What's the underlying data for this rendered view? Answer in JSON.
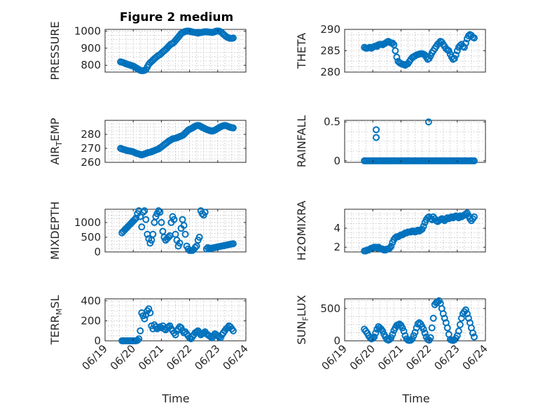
{
  "figure": {
    "title": "Figure 2 medium",
    "marker_color": "#0072BD",
    "xlabel": "Time",
    "x_tick_labels": [
      "06/19",
      "06/20",
      "06/21",
      "06/22",
      "06/23",
      "06/24"
    ]
  },
  "chart_data": [
    {
      "type": "scatter",
      "ylabel": "PRESSURE",
      "ylim": [
        760,
        1010
      ],
      "yticks": [
        800,
        900,
        1000
      ],
      "xlim": [
        0,
        5
      ],
      "grid": true,
      "x": [
        0.55,
        0.6,
        0.65,
        0.7,
        0.75,
        0.8,
        0.85,
        0.9,
        0.95,
        1.0,
        1.05,
        1.1,
        1.15,
        1.2,
        1.25,
        1.3,
        1.35,
        1.4,
        1.45,
        1.5,
        1.55,
        1.6,
        1.65,
        1.7,
        1.75,
        1.8,
        1.85,
        1.9,
        1.95,
        2.0,
        2.05,
        2.1,
        2.15,
        2.2,
        2.25,
        2.3,
        2.35,
        2.4,
        2.45,
        2.5,
        2.55,
        2.6,
        2.65,
        2.7,
        2.75,
        2.8,
        2.85,
        2.9,
        2.95,
        3.0,
        3.05,
        3.1,
        3.15,
        3.2,
        3.25,
        3.3,
        3.35,
        3.4,
        3.45,
        3.5,
        3.55,
        3.6,
        3.65,
        3.7,
        3.75,
        3.8,
        3.85,
        3.9,
        3.95,
        4.0,
        4.05,
        4.1,
        4.15,
        4.2,
        4.25,
        4.3,
        4.35,
        4.4,
        4.45,
        4.5,
        4.55
      ],
      "y": [
        820,
        818,
        815,
        812,
        808,
        805,
        803,
        800,
        798,
        795,
        790,
        785,
        780,
        775,
        770,
        768,
        768,
        770,
        775,
        790,
        805,
        815,
        822,
        830,
        838,
        845,
        852,
        858,
        862,
        870,
        878,
        885,
        892,
        900,
        910,
        918,
        925,
        928,
        935,
        945,
        955,
        965,
        975,
        985,
        990,
        995,
        998,
        1000,
        1000,
        999,
        997,
        995,
        993,
        992,
        990,
        988,
        990,
        992,
        993,
        995,
        996,
        996,
        995,
        994,
        993,
        992,
        994,
        997,
        1000,
        1001,
        1000,
        996,
        990,
        982,
        975,
        968,
        963,
        960,
        958,
        958,
        960
      ]
    },
    {
      "type": "scatter",
      "ylabel": "THETA",
      "ylim": [
        280,
        290
      ],
      "yticks": [
        280,
        285,
        290
      ],
      "xlim": [
        0,
        5
      ],
      "grid": true,
      "x": [
        0.7,
        0.75,
        0.8,
        0.85,
        0.9,
        0.95,
        1.0,
        1.05,
        1.1,
        1.15,
        1.2,
        1.25,
        1.3,
        1.35,
        1.4,
        1.45,
        1.5,
        1.55,
        1.6,
        1.65,
        1.7,
        1.75,
        1.8,
        1.85,
        1.9,
        1.95,
        2.0,
        2.05,
        2.1,
        2.15,
        2.2,
        2.25,
        2.3,
        2.35,
        2.4,
        2.45,
        2.5,
        2.55,
        2.6,
        2.65,
        2.7,
        2.75,
        2.8,
        2.85,
        2.9,
        2.95,
        3.0,
        3.05,
        3.1,
        3.15,
        3.2,
        3.25,
        3.3,
        3.35,
        3.4,
        3.45,
        3.5,
        3.55,
        3.6,
        3.65,
        3.7,
        3.75,
        3.8,
        3.85,
        3.9,
        3.95,
        4.0,
        4.05,
        4.1,
        4.15,
        4.2,
        4.25,
        4.3,
        4.35,
        4.4,
        4.45,
        4.5,
        4.55,
        4.6
      ],
      "y": [
        285.8,
        285.6,
        285.6,
        285.7,
        285.8,
        285.6,
        285.8,
        286.0,
        286.1,
        286.0,
        286.4,
        286.5,
        286.5,
        286.4,
        286.6,
        286.8,
        287.0,
        287.2,
        287.0,
        286.8,
        286.8,
        286.4,
        285.0,
        283.5,
        282.5,
        282.2,
        282.0,
        281.8,
        281.8,
        281.6,
        281.8,
        282.0,
        282.5,
        283.0,
        283.4,
        283.6,
        283.8,
        284.0,
        284.1,
        284.2,
        284.3,
        284.3,
        284.2,
        284.0,
        283.5,
        283.0,
        283.2,
        283.8,
        284.5,
        285.0,
        285.5,
        286.0,
        286.5,
        286.8,
        287.2,
        287.0,
        286.5,
        286.0,
        285.5,
        285.2,
        285.0,
        284.2,
        283.5,
        283.0,
        283.2,
        284.0,
        285.0,
        285.8,
        286.2,
        286.5,
        286.0,
        285.8,
        286.8,
        287.8,
        288.5,
        288.8,
        288.6,
        288.2,
        288.0
      ]
    },
    {
      "type": "scatter",
      "ylabel": "AIR_TEMP",
      "ylim": [
        260,
        290
      ],
      "yticks": [
        260,
        270,
        280
      ],
      "xlim": [
        0,
        5
      ],
      "grid": true,
      "x": [
        0.55,
        0.6,
        0.65,
        0.7,
        0.75,
        0.8,
        0.85,
        0.9,
        0.95,
        1.0,
        1.05,
        1.1,
        1.15,
        1.2,
        1.25,
        1.3,
        1.35,
        1.4,
        1.45,
        1.5,
        1.55,
        1.6,
        1.65,
        1.7,
        1.75,
        1.8,
        1.85,
        1.9,
        1.95,
        2.0,
        2.05,
        2.1,
        2.15,
        2.2,
        2.25,
        2.3,
        2.35,
        2.4,
        2.45,
        2.5,
        2.55,
        2.6,
        2.65,
        2.7,
        2.75,
        2.8,
        2.85,
        2.9,
        2.95,
        3.0,
        3.05,
        3.1,
        3.15,
        3.2,
        3.25,
        3.3,
        3.35,
        3.4,
        3.45,
        3.5,
        3.55,
        3.6,
        3.65,
        3.7,
        3.75,
        3.8,
        3.85,
        3.9,
        3.95,
        4.0,
        4.05,
        4.1,
        4.15,
        4.2,
        4.25,
        4.3,
        4.35,
        4.4,
        4.45,
        4.5,
        4.55
      ],
      "y": [
        270,
        269.6,
        269.2,
        269.0,
        268.6,
        268.4,
        268.2,
        268.0,
        267.8,
        267.5,
        267.0,
        266.6,
        266.2,
        266.0,
        265.6,
        265.4,
        265.6,
        266.0,
        266.4,
        266.8,
        267.0,
        267.2,
        267.6,
        268.0,
        268.4,
        268.8,
        269.2,
        269.6,
        270.4,
        271.0,
        271.8,
        272.6,
        273.4,
        274.2,
        275.0,
        275.6,
        276.2,
        276.8,
        277.0,
        277.2,
        277.6,
        278.0,
        278.4,
        278.8,
        279.2,
        280.0,
        281.0,
        282.0,
        283.0,
        283.6,
        284.0,
        284.6,
        285.2,
        285.8,
        286.2,
        286.4,
        286.2,
        285.6,
        285.0,
        284.6,
        284.0,
        283.6,
        283.2,
        282.8,
        282.6,
        282.4,
        282.6,
        283.0,
        283.6,
        284.2,
        284.8,
        285.4,
        285.8,
        286.2,
        286.4,
        286.2,
        285.8,
        285.4,
        285.0,
        284.8,
        284.6
      ]
    },
    {
      "type": "scatter",
      "ylabel": "RAINFALL",
      "ylim": [
        -0.02,
        0.52
      ],
      "yticks": [
        0,
        0.5
      ],
      "xlim": [
        0,
        5
      ],
      "grid": true,
      "x": [
        0.7,
        0.75,
        0.8,
        0.85,
        0.9,
        0.95,
        1.0,
        1.05,
        1.1,
        1.15,
        1.2,
        1.25,
        1.3,
        1.35,
        1.4,
        1.45,
        1.5,
        1.55,
        1.6,
        1.65,
        1.7,
        1.75,
        1.8,
        1.85,
        1.9,
        1.95,
        2.0,
        2.05,
        2.1,
        2.15,
        2.2,
        2.25,
        2.3,
        2.35,
        2.4,
        2.45,
        2.5,
        2.55,
        2.6,
        2.65,
        2.7,
        2.75,
        2.8,
        2.85,
        2.9,
        2.95,
        3.0,
        3.05,
        3.1,
        3.15,
        3.2,
        3.25,
        3.3,
        3.35,
        3.4,
        3.45,
        3.5,
        3.55,
        3.6,
        3.65,
        3.7,
        3.75,
        3.8,
        3.85,
        3.9,
        3.95,
        4.0,
        4.05,
        4.1,
        4.15,
        4.2,
        4.25,
        4.3,
        4.35,
        4.4,
        4.45,
        4.5,
        4.55,
        4.6,
        1.12,
        1.12,
        2.98
      ],
      "y": [
        0,
        0,
        0,
        0,
        0,
        0,
        0,
        0,
        0,
        0,
        0,
        0,
        0,
        0,
        0,
        0,
        0,
        0,
        0,
        0,
        0,
        0,
        0,
        0,
        0,
        0,
        0,
        0,
        0,
        0,
        0,
        0,
        0,
        0,
        0,
        0,
        0,
        0,
        0,
        0,
        0,
        0,
        0,
        0,
        0,
        0,
        0,
        0,
        0,
        0,
        0,
        0,
        0,
        0,
        0,
        0,
        0,
        0,
        0,
        0,
        0,
        0,
        0,
        0,
        0,
        0,
        0,
        0,
        0,
        0,
        0,
        0,
        0,
        0,
        0,
        0,
        0,
        0,
        0,
        0.4,
        0.3,
        0.5
      ]
    },
    {
      "type": "scatter",
      "ylabel": "MIXDEPTH",
      "ylim": [
        0,
        1450
      ],
      "yticks": [
        0,
        500,
        1000
      ],
      "xlim": [
        0,
        5
      ],
      "grid": true,
      "x": [
        0.6,
        0.65,
        0.7,
        0.75,
        0.8,
        0.85,
        0.9,
        0.95,
        1.0,
        1.05,
        1.1,
        1.15,
        1.2,
        1.25,
        1.3,
        1.35,
        1.4,
        1.45,
        1.5,
        1.55,
        1.6,
        1.65,
        1.7,
        1.75,
        1.8,
        1.85,
        1.9,
        1.95,
        2.0,
        2.05,
        2.1,
        2.15,
        2.2,
        2.25,
        2.3,
        2.35,
        2.4,
        2.45,
        2.5,
        2.55,
        2.6,
        2.65,
        2.7,
        2.75,
        2.8,
        2.85,
        2.9,
        2.95,
        3.0,
        3.05,
        3.1,
        3.15,
        3.2,
        3.25,
        3.3,
        3.35,
        3.4,
        3.45,
        3.5,
        3.55,
        3.6,
        3.65,
        3.7,
        3.75,
        3.8,
        3.85,
        3.9,
        3.95,
        4.0,
        4.05,
        4.1,
        4.15,
        4.2,
        4.25,
        4.3,
        4.35,
        4.4,
        4.45,
        4.5,
        4.55
      ],
      "y": [
        650,
        700,
        750,
        800,
        850,
        900,
        950,
        1000,
        1050,
        1100,
        1150,
        1300,
        1400,
        1200,
        850,
        1350,
        1400,
        1100,
        600,
        450,
        300,
        400,
        600,
        1000,
        1200,
        1300,
        1400,
        1350,
        1000,
        700,
        500,
        400,
        450,
        500,
        550,
        1000,
        1200,
        1100,
        600,
        400,
        200,
        300,
        800,
        1100,
        900,
        600,
        200,
        100,
        50,
        50,
        50,
        80,
        150,
        200,
        400,
        500,
        1400,
        1300,
        1250,
        1350,
        100,
        150,
        100,
        120,
        130,
        140,
        150,
        160,
        170,
        180,
        190,
        200,
        210,
        220,
        230,
        240,
        250,
        260,
        270,
        280
      ]
    },
    {
      "type": "scatter",
      "ylabel": "H2OMIXRA",
      "ylim": [
        1.5,
        6
      ],
      "yticks": [
        2,
        4
      ],
      "xlim": [
        0,
        5
      ],
      "grid": true,
      "x": [
        0.7,
        0.75,
        0.8,
        0.85,
        0.9,
        0.95,
        1.0,
        1.05,
        1.1,
        1.15,
        1.2,
        1.25,
        1.3,
        1.35,
        1.4,
        1.45,
        1.5,
        1.55,
        1.6,
        1.65,
        1.7,
        1.75,
        1.8,
        1.85,
        1.9,
        1.95,
        2.0,
        2.05,
        2.1,
        2.15,
        2.2,
        2.25,
        2.3,
        2.35,
        2.4,
        2.45,
        2.5,
        2.55,
        2.6,
        2.65,
        2.7,
        2.75,
        2.8,
        2.85,
        2.9,
        2.95,
        3.0,
        3.05,
        3.1,
        3.15,
        3.2,
        3.25,
        3.3,
        3.35,
        3.4,
        3.45,
        3.5,
        3.55,
        3.6,
        3.65,
        3.7,
        3.75,
        3.8,
        3.85,
        3.9,
        3.95,
        4.0,
        4.05,
        4.1,
        4.15,
        4.2,
        4.25,
        4.3,
        4.35,
        4.4,
        4.45,
        4.5,
        4.55,
        4.6
      ],
      "y": [
        1.6,
        1.6,
        1.7,
        1.7,
        1.8,
        1.9,
        1.9,
        2.0,
        2.0,
        1.9,
        2.0,
        1.9,
        1.8,
        1.8,
        1.7,
        1.7,
        1.8,
        1.8,
        1.9,
        2.1,
        2.5,
        2.8,
        3.0,
        3.1,
        3.1,
        3.2,
        3.3,
        3.3,
        3.4,
        3.5,
        3.5,
        3.6,
        3.6,
        3.6,
        3.7,
        3.7,
        3.6,
        3.7,
        3.8,
        3.7,
        3.8,
        3.9,
        4.2,
        4.6,
        4.9,
        5.1,
        5.2,
        5.0,
        4.9,
        5.2,
        5.0,
        4.8,
        4.7,
        4.8,
        4.9,
        5.0,
        4.9,
        4.8,
        5.0,
        5.1,
        5.0,
        5.1,
        5.2,
        5.1,
        5.2,
        5.3,
        5.2,
        5.1,
        5.3,
        5.2,
        5.3,
        5.4,
        5.5,
        5.6,
        5.3,
        5.0,
        4.8,
        5.0,
        5.2
      ]
    },
    {
      "type": "scatter",
      "ylabel": "TERR_MSL",
      "ylim": [
        0,
        420
      ],
      "yticks": [
        0,
        200,
        400
      ],
      "xlim": [
        0,
        5
      ],
      "grid": true,
      "x": [
        0.6,
        0.65,
        0.7,
        0.75,
        0.8,
        0.85,
        0.9,
        0.95,
        1.0,
        1.05,
        1.1,
        1.15,
        1.2,
        1.25,
        1.3,
        1.35,
        1.4,
        1.45,
        1.5,
        1.55,
        1.6,
        1.65,
        1.7,
        1.75,
        1.8,
        1.85,
        1.9,
        1.95,
        2.0,
        2.05,
        2.1,
        2.15,
        2.2,
        2.25,
        2.3,
        2.35,
        2.4,
        2.45,
        2.5,
        2.55,
        2.6,
        2.65,
        2.7,
        2.75,
        2.8,
        2.85,
        2.9,
        2.95,
        3.0,
        3.05,
        3.1,
        3.15,
        3.2,
        3.25,
        3.3,
        3.35,
        3.4,
        3.45,
        3.5,
        3.55,
        3.6,
        3.65,
        3.7,
        3.75,
        3.8,
        3.85,
        3.9,
        3.95,
        4.0,
        4.05,
        4.1,
        4.15,
        4.2,
        4.25,
        4.3,
        4.35,
        4.4,
        4.45,
        4.5,
        4.55
      ],
      "y": [
        0,
        0,
        0,
        0,
        0,
        0,
        0,
        0,
        0,
        0,
        0,
        5,
        20,
        100,
        280,
        250,
        220,
        260,
        300,
        320,
        280,
        150,
        120,
        160,
        140,
        120,
        130,
        140,
        130,
        150,
        120,
        110,
        130,
        140,
        150,
        120,
        100,
        80,
        60,
        100,
        120,
        140,
        130,
        100,
        80,
        90,
        70,
        50,
        30,
        20,
        40,
        60,
        80,
        90,
        100,
        80,
        60,
        70,
        80,
        90,
        70,
        60,
        50,
        40,
        30,
        50,
        70,
        60,
        50,
        40,
        30,
        60,
        80,
        100,
        120,
        130,
        150,
        140,
        120,
        100
      ]
    },
    {
      "type": "scatter",
      "ylabel": "SUN_FLUX",
      "ylim": [
        0,
        650
      ],
      "yticks": [
        0,
        500
      ],
      "xlim": [
        0,
        5
      ],
      "grid": true,
      "x": [
        0.7,
        0.75,
        0.8,
        0.85,
        0.9,
        0.95,
        1.0,
        1.05,
        1.1,
        1.15,
        1.2,
        1.25,
        1.3,
        1.35,
        1.4,
        1.45,
        1.5,
        1.55,
        1.6,
        1.65,
        1.7,
        1.75,
        1.8,
        1.85,
        1.9,
        1.95,
        2.0,
        2.05,
        2.1,
        2.15,
        2.2,
        2.25,
        2.3,
        2.35,
        2.4,
        2.45,
        2.5,
        2.55,
        2.6,
        2.65,
        2.7,
        2.75,
        2.8,
        2.85,
        2.9,
        2.95,
        3.0,
        3.05,
        3.1,
        3.15,
        3.2,
        3.25,
        3.3,
        3.35,
        3.4,
        3.45,
        3.5,
        3.55,
        3.6,
        3.65,
        3.7,
        3.75,
        3.8,
        3.85,
        3.9,
        3.95,
        4.0,
        4.05,
        4.1,
        4.15,
        4.2,
        4.25,
        4.3,
        4.35,
        4.4,
        4.45,
        4.5,
        4.55,
        4.6
      ],
      "y": [
        180,
        150,
        120,
        80,
        50,
        30,
        40,
        60,
        120,
        180,
        220,
        200,
        180,
        150,
        100,
        60,
        20,
        10,
        20,
        50,
        100,
        160,
        200,
        240,
        250,
        260,
        240,
        200,
        150,
        80,
        30,
        10,
        5,
        10,
        30,
        80,
        130,
        200,
        260,
        280,
        260,
        220,
        180,
        120,
        60,
        20,
        10,
        50,
        200,
        350,
        560,
        590,
        600,
        620,
        580,
        500,
        420,
        350,
        280,
        200,
        100,
        20,
        10,
        5,
        15,
        40,
        80,
        150,
        250,
        350,
        420,
        450,
        480,
        420,
        350,
        280,
        200,
        120,
        60
      ]
    }
  ]
}
